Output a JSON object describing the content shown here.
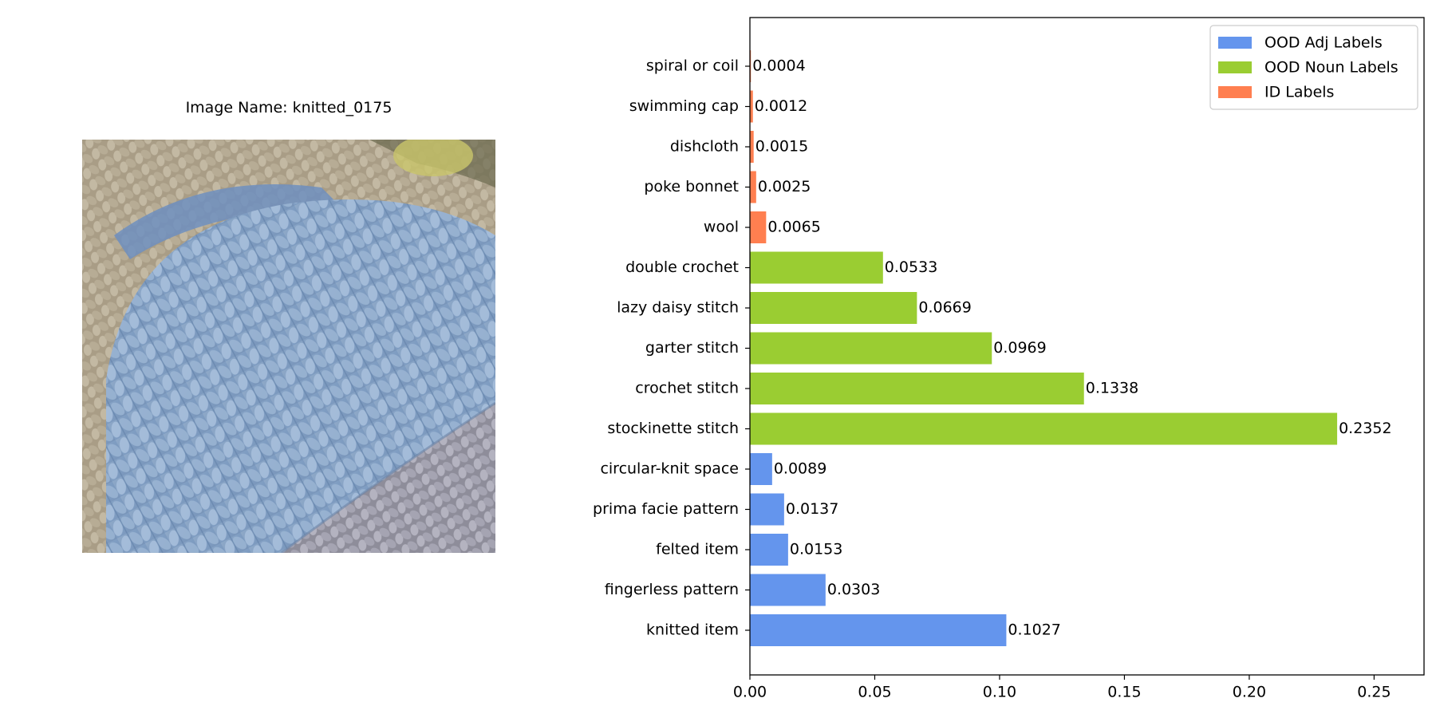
{
  "image_panel": {
    "caption_prefix": "Image Name: ",
    "image_name": "knitted_0175",
    "photo_subject": "close-up of light blue knitted stockinette fabric with beige and grey bands"
  },
  "chart_data": {
    "type": "bar",
    "orientation": "horizontal",
    "title": "",
    "xlabel": "",
    "ylabel": "",
    "xlim": [
      0,
      0.27
    ],
    "xticks": [
      0.0,
      0.05,
      0.1,
      0.15,
      0.2,
      0.25
    ],
    "xtick_labels": [
      "0.00",
      "0.05",
      "0.10",
      "0.15",
      "0.20",
      "0.25"
    ],
    "grid": false,
    "legend_position": "top-right",
    "legend": [
      {
        "label": "OOD Adj Labels",
        "color": "#6495ED"
      },
      {
        "label": "OOD Noun Labels",
        "color": "#9ACD32"
      },
      {
        "label": "ID Labels",
        "color": "#FF7F50"
      }
    ],
    "bars": [
      {
        "category": "knitted item",
        "value": 0.1027,
        "value_label": "0.1027",
        "group": "OOD Adj Labels"
      },
      {
        "category": "fingerless pattern",
        "value": 0.0303,
        "value_label": "0.0303",
        "group": "OOD Adj Labels"
      },
      {
        "category": "felted item",
        "value": 0.0153,
        "value_label": "0.0153",
        "group": "OOD Adj Labels"
      },
      {
        "category": "prima facie pattern",
        "value": 0.0137,
        "value_label": "0.0137",
        "group": "OOD Adj Labels"
      },
      {
        "category": "circular-knit space",
        "value": 0.0089,
        "value_label": "0.0089",
        "group": "OOD Adj Labels"
      },
      {
        "category": "stockinette stitch",
        "value": 0.2352,
        "value_label": "0.2352",
        "group": "OOD Noun Labels"
      },
      {
        "category": "crochet stitch",
        "value": 0.1338,
        "value_label": "0.1338",
        "group": "OOD Noun Labels"
      },
      {
        "category": "garter stitch",
        "value": 0.0969,
        "value_label": "0.0969",
        "group": "OOD Noun Labels"
      },
      {
        "category": "lazy daisy stitch",
        "value": 0.0669,
        "value_label": "0.0669",
        "group": "OOD Noun Labels"
      },
      {
        "category": "double crochet",
        "value": 0.0533,
        "value_label": "0.0533",
        "group": "OOD Noun Labels"
      },
      {
        "category": "wool",
        "value": 0.0065,
        "value_label": "0.0065",
        "group": "ID Labels"
      },
      {
        "category": "poke bonnet",
        "value": 0.0025,
        "value_label": "0.0025",
        "group": "ID Labels"
      },
      {
        "category": "dishcloth",
        "value": 0.0015,
        "value_label": "0.0015",
        "group": "ID Labels"
      },
      {
        "category": "swimming cap",
        "value": 0.0012,
        "value_label": "0.0012",
        "group": "ID Labels"
      },
      {
        "category": "spiral or coil",
        "value": 0.0004,
        "value_label": "0.0004",
        "group": "ID Labels"
      }
    ]
  }
}
